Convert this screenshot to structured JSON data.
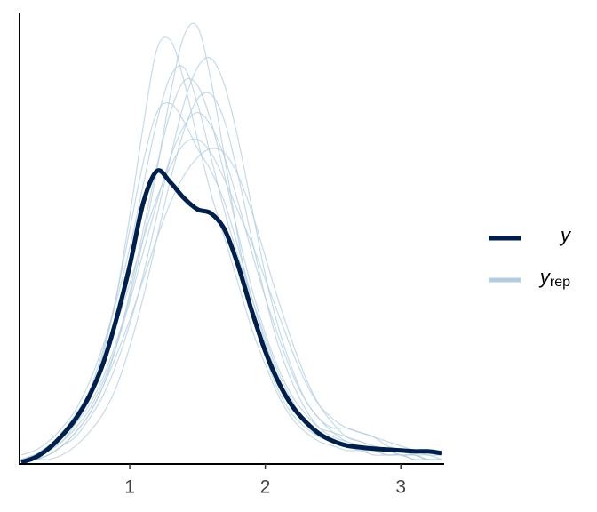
{
  "chart_data": {
    "type": "density",
    "x": [
      0.2,
      0.3,
      0.4,
      0.5,
      0.6,
      0.7,
      0.8,
      0.9,
      1.0,
      1.1,
      1.2,
      1.3,
      1.4,
      1.5,
      1.6,
      1.7,
      1.8,
      1.9,
      2.0,
      2.1,
      2.2,
      2.3,
      2.4,
      2.5,
      2.6,
      2.7,
      2.8,
      2.9,
      3.0,
      3.1,
      3.2,
      3.3
    ],
    "xlim": [
      0.187,
      3.32
    ],
    "xticks": [
      1,
      2,
      3
    ],
    "ylim": [
      0,
      1
    ],
    "legend": "right",
    "series": [
      {
        "name": "y",
        "color": "#011f4b",
        "values": [
          0.004,
          0.014,
          0.034,
          0.063,
          0.1,
          0.15,
          0.22,
          0.32,
          0.44,
          0.58,
          0.65,
          0.625,
          0.59,
          0.565,
          0.556,
          0.52,
          0.44,
          0.34,
          0.25,
          0.18,
          0.128,
          0.093,
          0.067,
          0.051,
          0.041,
          0.037,
          0.034,
          0.032,
          0.03,
          0.028,
          0.028,
          0.024
        ]
      },
      {
        "name": "y",
        "subscript": "rep",
        "color": "#b3cde0",
        "draws": [
          [
            0.01,
            0.02,
            0.04,
            0.06,
            0.09,
            0.13,
            0.19,
            0.27,
            0.37,
            0.5,
            0.65,
            0.82,
            0.95,
            0.97,
            0.85,
            0.68,
            0.5,
            0.35,
            0.24,
            0.16,
            0.11,
            0.08,
            0.06,
            0.05,
            0.04,
            0.04,
            0.03,
            0.03,
            0.02,
            0.02,
            0.01,
            0.01
          ],
          [
            0.01,
            0.02,
            0.03,
            0.05,
            0.09,
            0.15,
            0.24,
            0.37,
            0.55,
            0.75,
            0.92,
            0.94,
            0.85,
            0.72,
            0.6,
            0.5,
            0.4,
            0.3,
            0.22,
            0.15,
            0.1,
            0.07,
            0.05,
            0.04,
            0.03,
            0.03,
            0.02,
            0.02,
            0.02,
            0.01,
            0.01,
            0.01
          ],
          [
            0.0,
            0.01,
            0.02,
            0.04,
            0.07,
            0.11,
            0.17,
            0.24,
            0.32,
            0.41,
            0.5,
            0.58,
            0.64,
            0.68,
            0.7,
            0.69,
            0.64,
            0.56,
            0.46,
            0.36,
            0.27,
            0.19,
            0.13,
            0.09,
            0.06,
            0.05,
            0.04,
            0.03,
            0.03,
            0.02,
            0.02,
            0.01
          ],
          [
            0.01,
            0.01,
            0.02,
            0.04,
            0.07,
            0.11,
            0.17,
            0.26,
            0.38,
            0.52,
            0.66,
            0.78,
            0.85,
            0.84,
            0.76,
            0.64,
            0.51,
            0.39,
            0.29,
            0.21,
            0.15,
            0.11,
            0.08,
            0.07,
            0.06,
            0.05,
            0.04,
            0.03,
            0.02,
            0.02,
            0.01,
            0.01
          ],
          [
            0.01,
            0.02,
            0.03,
            0.05,
            0.08,
            0.12,
            0.18,
            0.26,
            0.36,
            0.47,
            0.58,
            0.68,
            0.75,
            0.78,
            0.75,
            0.68,
            0.58,
            0.47,
            0.37,
            0.28,
            0.2,
            0.14,
            0.1,
            0.08,
            0.08,
            0.07,
            0.06,
            0.04,
            0.03,
            0.02,
            0.01,
            0.01
          ],
          [
            0.02,
            0.03,
            0.05,
            0.08,
            0.12,
            0.18,
            0.26,
            0.36,
            0.48,
            0.62,
            0.76,
            0.86,
            0.88,
            0.8,
            0.68,
            0.56,
            0.46,
            0.37,
            0.28,
            0.2,
            0.14,
            0.09,
            0.06,
            0.05,
            0.04,
            0.03,
            0.03,
            0.02,
            0.02,
            0.01,
            0.01,
            0.01
          ],
          [
            0.0,
            0.01,
            0.01,
            0.02,
            0.04,
            0.07,
            0.11,
            0.17,
            0.26,
            0.37,
            0.5,
            0.63,
            0.74,
            0.81,
            0.82,
            0.76,
            0.64,
            0.5,
            0.37,
            0.26,
            0.18,
            0.12,
            0.08,
            0.06,
            0.05,
            0.04,
            0.03,
            0.03,
            0.02,
            0.02,
            0.01,
            0.01
          ],
          [
            0.01,
            0.02,
            0.04,
            0.07,
            0.11,
            0.16,
            0.23,
            0.31,
            0.4,
            0.5,
            0.59,
            0.66,
            0.71,
            0.72,
            0.69,
            0.63,
            0.56,
            0.49,
            0.41,
            0.33,
            0.25,
            0.18,
            0.13,
            0.1,
            0.08,
            0.07,
            0.06,
            0.05,
            0.04,
            0.03,
            0.02,
            0.02
          ],
          [
            0.01,
            0.02,
            0.04,
            0.06,
            0.1,
            0.16,
            0.25,
            0.37,
            0.52,
            0.67,
            0.78,
            0.8,
            0.76,
            0.7,
            0.65,
            0.58,
            0.48,
            0.37,
            0.27,
            0.19,
            0.13,
            0.09,
            0.07,
            0.05,
            0.04,
            0.04,
            0.03,
            0.02,
            0.02,
            0.01,
            0.01,
            0.01
          ],
          [
            0.01,
            0.01,
            0.02,
            0.04,
            0.06,
            0.1,
            0.15,
            0.22,
            0.31,
            0.42,
            0.55,
            0.68,
            0.8,
            0.88,
            0.9,
            0.84,
            0.72,
            0.57,
            0.42,
            0.3,
            0.21,
            0.14,
            0.1,
            0.07,
            0.05,
            0.04,
            0.03,
            0.03,
            0.02,
            0.02,
            0.01,
            0.01
          ]
        ]
      }
    ]
  }
}
